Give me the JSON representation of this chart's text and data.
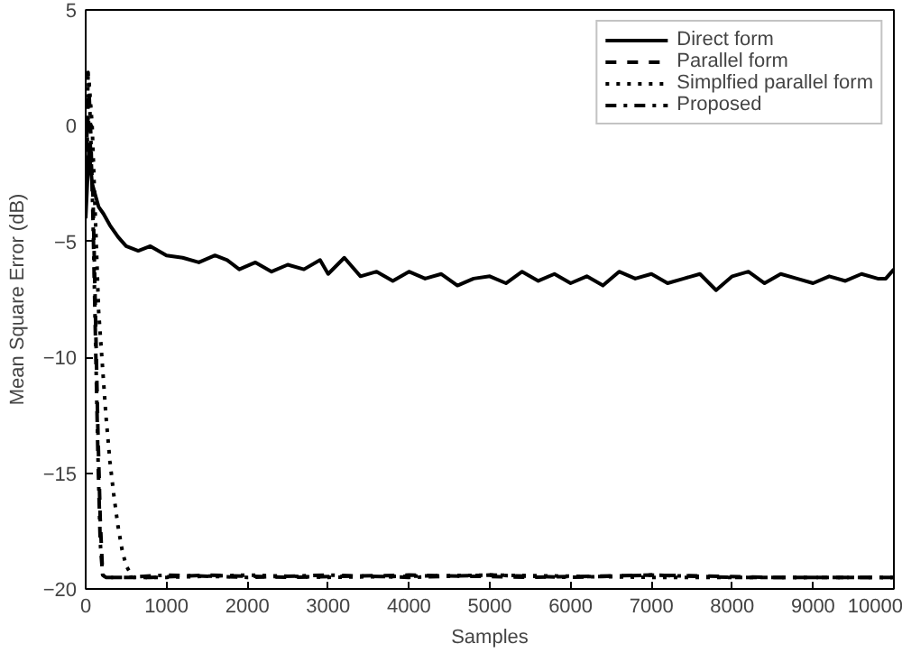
{
  "chart_data": {
    "type": "line",
    "xlabel": "Samples",
    "ylabel": "Mean Square Error (dB)",
    "xlim": [
      0,
      10000
    ],
    "ylim": [
      -20,
      5
    ],
    "xticks": [
      0,
      1000,
      2000,
      3000,
      4000,
      5000,
      6000,
      7000,
      8000,
      9000,
      10000
    ],
    "yticks": [
      -20,
      -15,
      -10,
      -5,
      0,
      5
    ],
    "grid": false,
    "legend": "top right",
    "series": [
      {
        "name": "Direct form",
        "color": "#000000",
        "line_style": "solid",
        "x": [
          0,
          40,
          80,
          120,
          160,
          220,
          300,
          400,
          500,
          650,
          800,
          1000,
          1200,
          1400,
          1600,
          1750,
          1900,
          2100,
          2300,
          2500,
          2700,
          2900,
          3000,
          3200,
          3400,
          3600,
          3800,
          4000,
          4200,
          4400,
          4600,
          4800,
          5000,
          5200,
          5400,
          5600,
          5800,
          6000,
          6200,
          6400,
          6600,
          6800,
          7000,
          7200,
          7400,
          7600,
          7800,
          8000,
          8200,
          8400,
          8600,
          8800,
          9000,
          9200,
          9400,
          9600,
          9800,
          9900,
          10000
        ],
        "values": [
          -4,
          -1,
          -2.5,
          -3,
          -3.5,
          -3.8,
          -4.3,
          -4.8,
          -5.2,
          -5.4,
          -5.2,
          -5.6,
          -5.7,
          -5.9,
          -5.6,
          -5.8,
          -6.2,
          -5.9,
          -6.3,
          -6.0,
          -6.2,
          -5.8,
          -6.4,
          -5.7,
          -6.5,
          -6.3,
          -6.7,
          -6.3,
          -6.6,
          -6.4,
          -6.9,
          -6.6,
          -6.5,
          -6.8,
          -6.3,
          -6.7,
          -6.4,
          -6.8,
          -6.5,
          -6.9,
          -6.3,
          -6.6,
          -6.4,
          -6.8,
          -6.6,
          -6.4,
          -7.1,
          -6.5,
          -6.3,
          -6.8,
          -6.4,
          -6.6,
          -6.8,
          -6.5,
          -6.7,
          -6.4,
          -6.6,
          -6.6,
          -6.2
        ]
      },
      {
        "name": "Parallel form",
        "color": "#000000",
        "line_style": "dashed",
        "x": [
          0,
          30,
          60,
          90,
          120,
          150,
          180,
          210,
          250,
          400,
          800,
          1500,
          2500,
          4000,
          5500,
          7000,
          8500,
          10000
        ],
        "values": [
          -2,
          0.5,
          -1,
          -3,
          -8,
          -13,
          -17,
          -19.4,
          -19.5,
          -19.5,
          -19.5,
          -19.4,
          -19.5,
          -19.4,
          -19.5,
          -19.4,
          -19.5,
          -19.5
        ]
      },
      {
        "name": "Simplfied parallel form",
        "color": "#000000",
        "line_style": "dotted",
        "x": [
          0,
          40,
          80,
          120,
          160,
          200,
          250,
          300,
          350,
          400,
          450,
          500,
          550,
          600,
          700,
          1000,
          2000,
          3000,
          5000,
          7000,
          9000,
          10000
        ],
        "values": [
          -3,
          2,
          0,
          -4,
          -8,
          -10,
          -12.5,
          -14.5,
          -16,
          -17.3,
          -18.3,
          -19,
          -19.3,
          -19.5,
          -19.5,
          -19.5,
          -19.4,
          -19.5,
          -19.4,
          -19.5,
          -19.5,
          -19.5
        ]
      },
      {
        "name": "Proposed",
        "color": "#000000",
        "line_style": "dashdot",
        "x": [
          0,
          30,
          60,
          90,
          120,
          150,
          180,
          210,
          250,
          500,
          1000,
          2000,
          3000,
          4000,
          5000,
          6000,
          7000,
          8000,
          9000,
          10000
        ],
        "values": [
          -3,
          2.3,
          0,
          -4,
          -9,
          -14,
          -18,
          -19.4,
          -19.5,
          -19.5,
          -19.4,
          -19.5,
          -19.4,
          -19.5,
          -19.4,
          -19.5,
          -19.4,
          -19.5,
          -19.5,
          -19.5
        ]
      }
    ]
  }
}
